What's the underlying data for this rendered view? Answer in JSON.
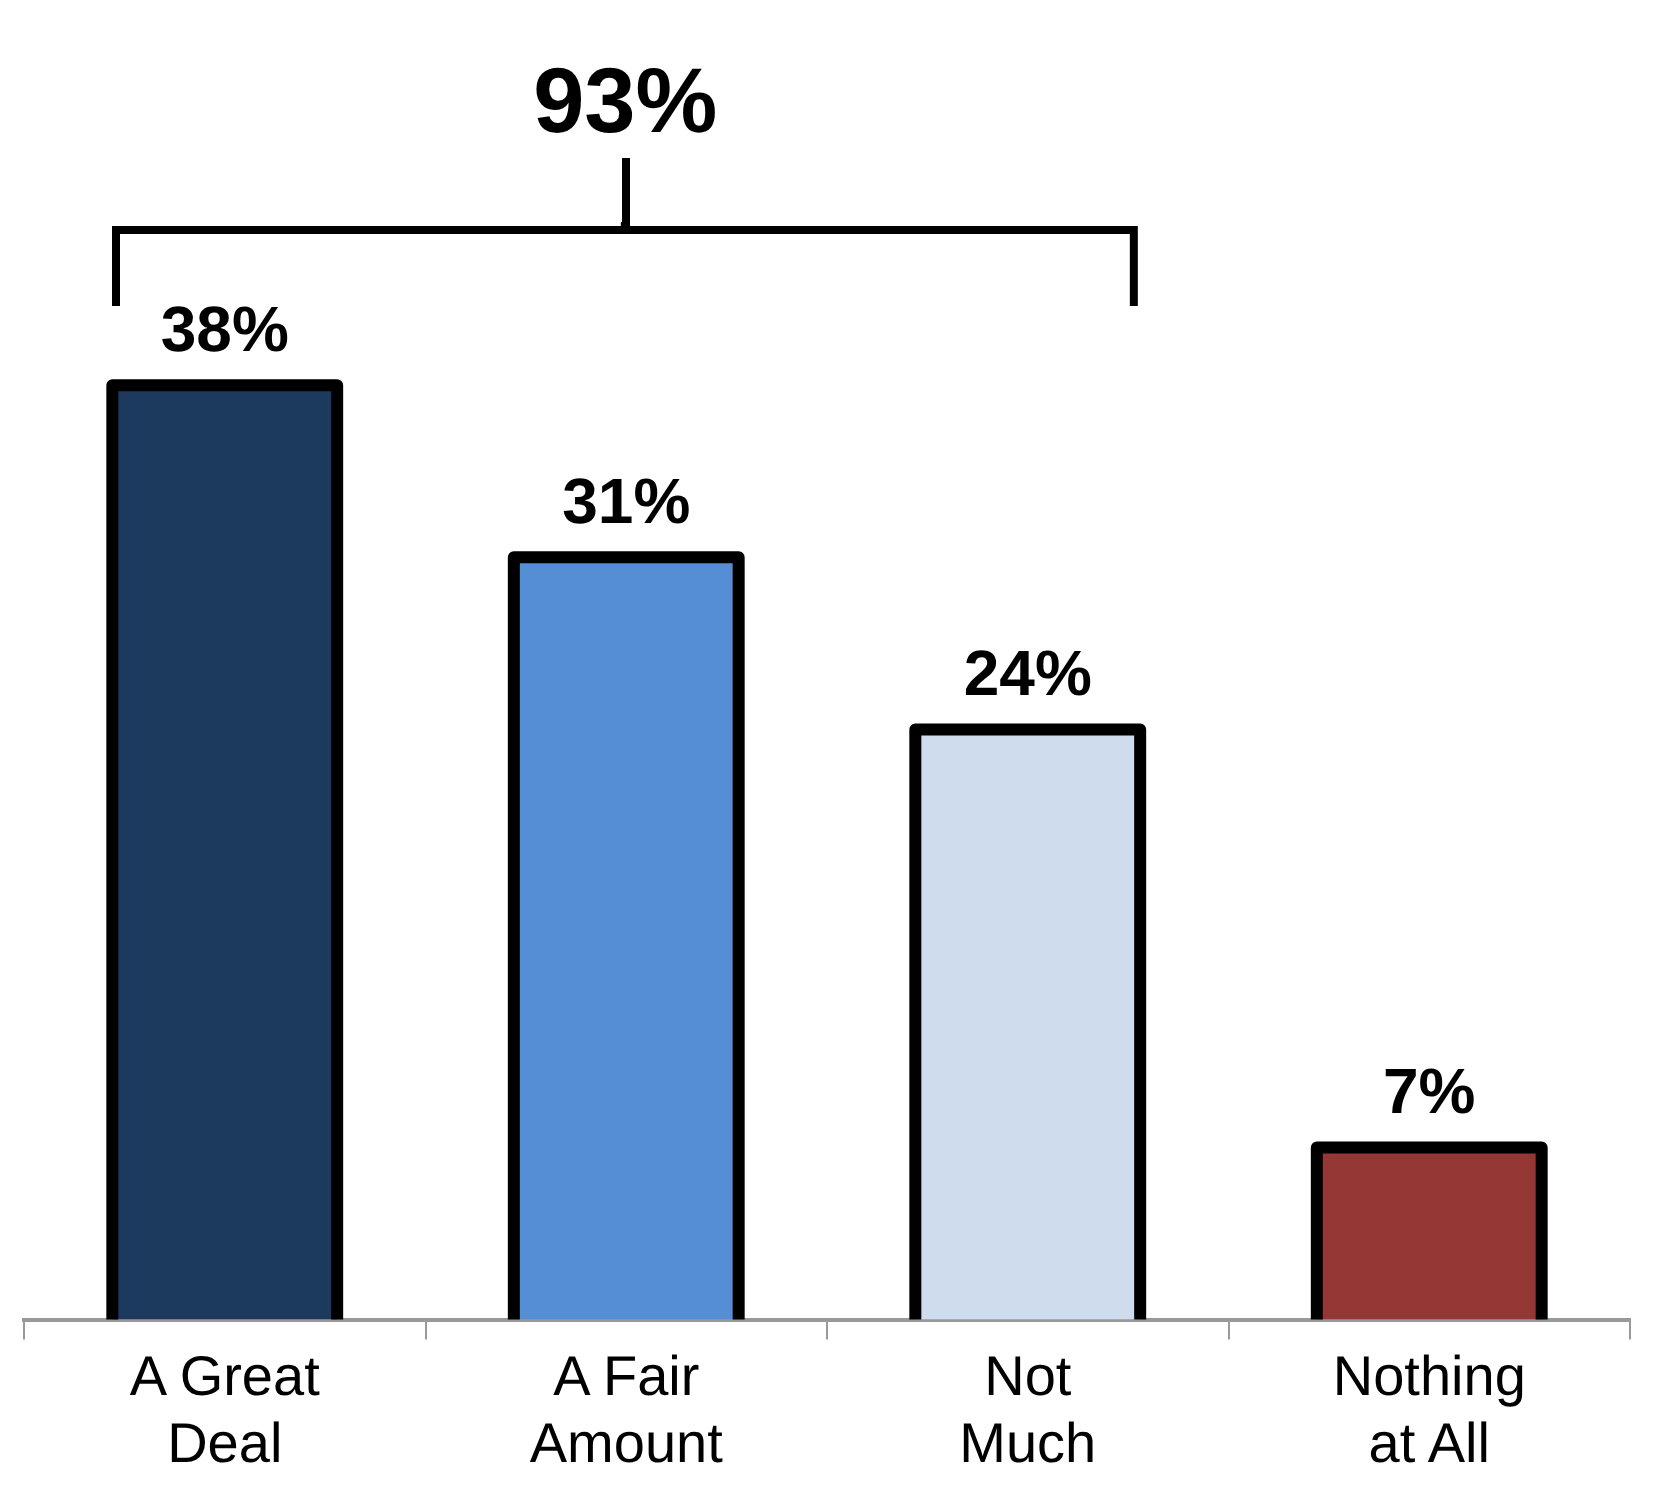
{
  "chart_data": {
    "type": "bar",
    "categories": [
      "A Great\nDeal",
      "A Fair\nAmount",
      "Not\nMuch",
      "Nothing\nat All"
    ],
    "values": [
      38,
      31,
      24,
      7
    ],
    "colors": [
      "#1c3a5e",
      "#558ed5",
      "#cfdcee",
      "#953735"
    ],
    "value_labels": [
      "38%",
      "31%",
      "24%",
      "7%"
    ],
    "annotations": [
      "93%"
    ],
    "grid": false,
    "legend": false
  }
}
